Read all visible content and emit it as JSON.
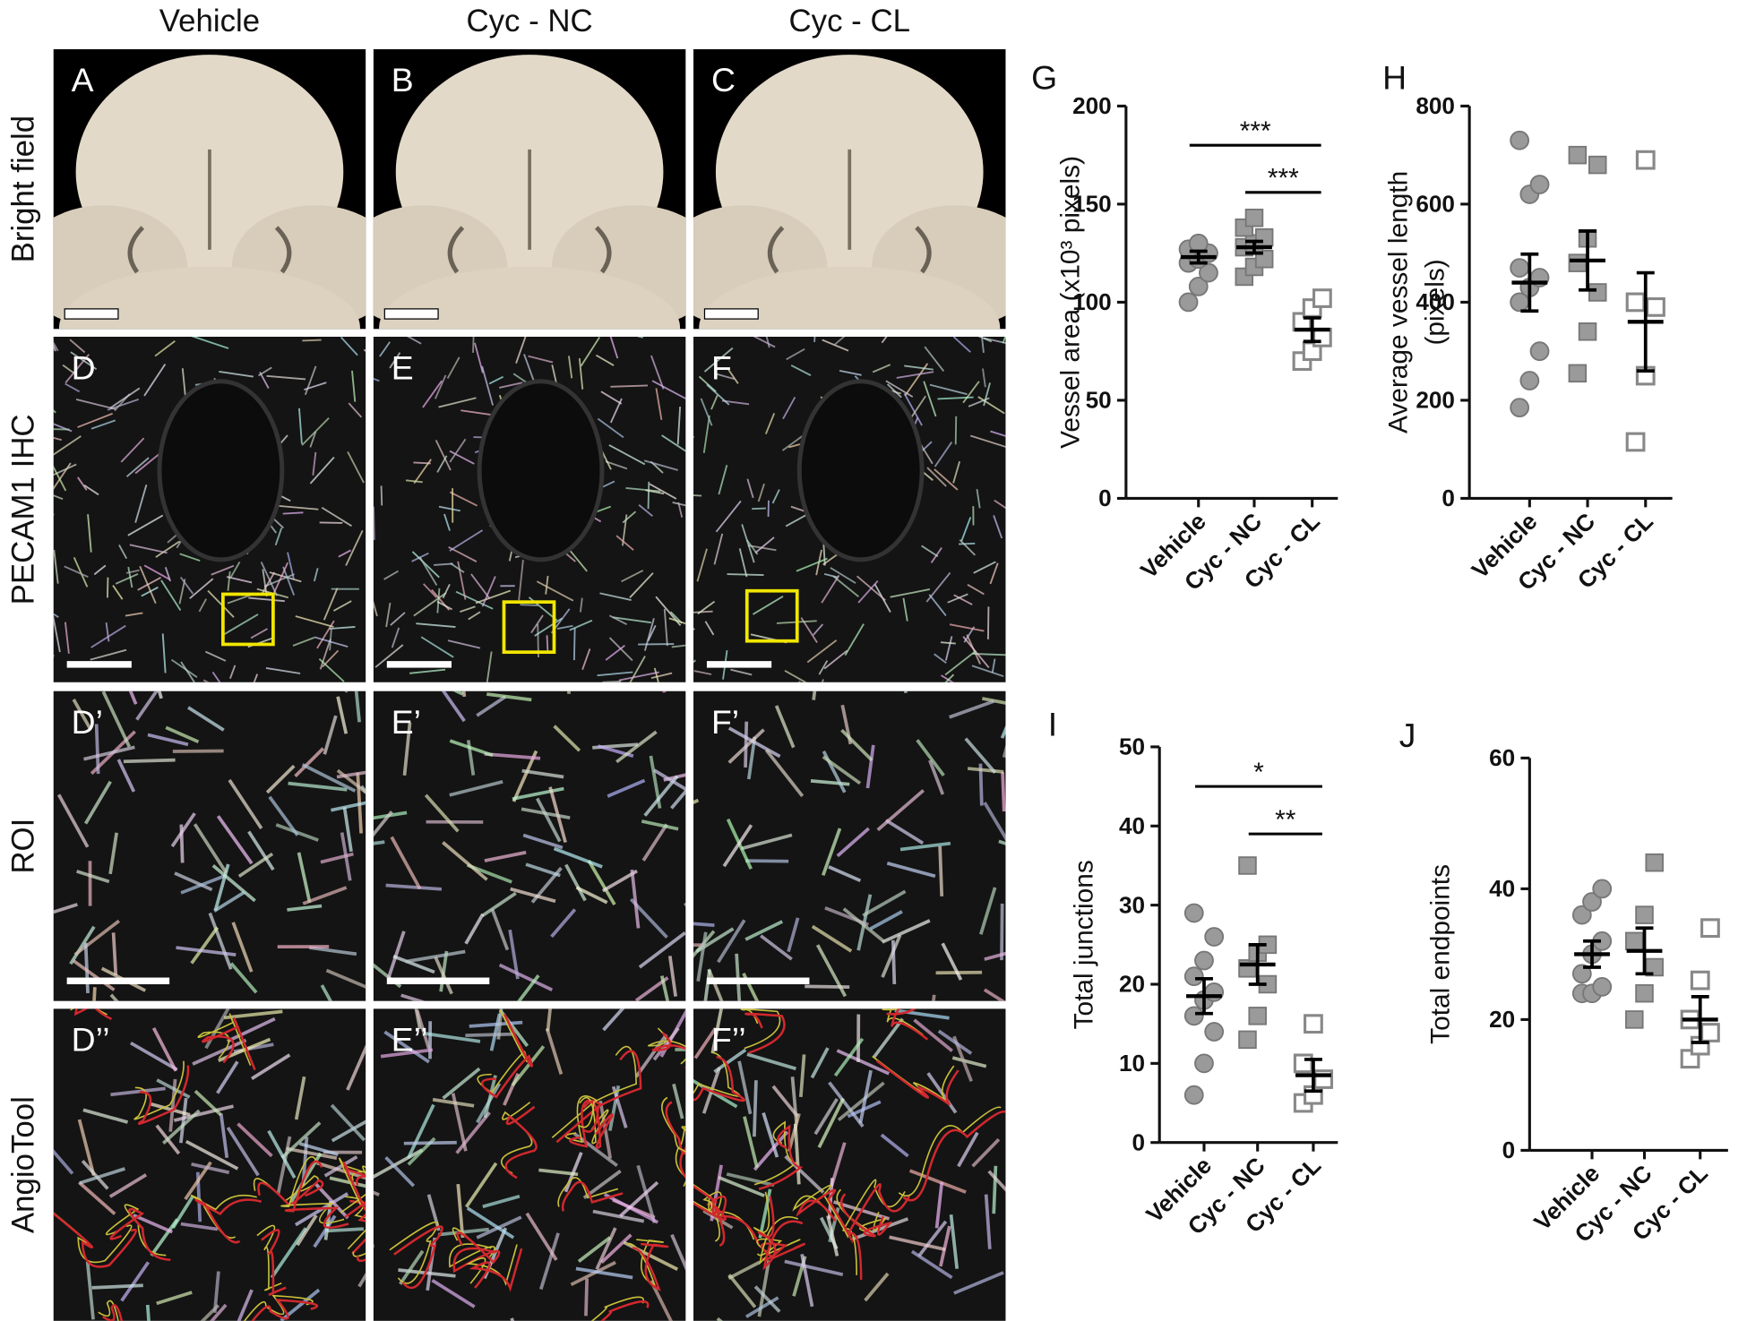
{
  "column_headers": [
    "Vehicle",
    "Cyc - NC",
    "Cyc - CL"
  ],
  "row_labels": [
    "Bright field",
    "PECAM1 IHC",
    "ROI",
    "AngioTool"
  ],
  "panel_labels": [
    [
      "A",
      "B",
      "C"
    ],
    [
      "D",
      "E",
      "F"
    ],
    [
      "D’",
      "E’",
      "F’"
    ],
    [
      "D’’",
      "E’’",
      "F’’"
    ]
  ],
  "chart_data": [
    {
      "type": "dot",
      "panel_label": "G",
      "ylabel": [
        "Vessel area (x10³ pixels)"
      ],
      "categories": [
        "Vehicle",
        "Cyc - NC",
        "Cyc - CL"
      ],
      "ylim": [
        0,
        200
      ],
      "yticks": [
        0,
        50,
        100,
        150,
        200
      ],
      "markers": [
        "circle",
        "square",
        "open-square"
      ],
      "colors": [
        "#9a9a9a",
        "#9a9a9a",
        "#ffffff"
      ],
      "points": [
        [
          100,
          108,
          115,
          120,
          122,
          125,
          127,
          130
        ],
        [
          113,
          118,
          122,
          128,
          130,
          133,
          138,
          143
        ],
        [
          70,
          75,
          82,
          90,
          97,
          102
        ]
      ],
      "means": [
        123,
        128,
        86
      ],
      "sems": [
        3,
        3,
        6
      ],
      "brackets": [
        {
          "label": "***",
          "span": [
            0,
            2
          ]
        },
        {
          "label": "***",
          "span": [
            1,
            2
          ]
        }
      ]
    },
    {
      "type": "dot",
      "panel_label": "H",
      "ylabel": [
        "Average vessel length",
        "(pixels)"
      ],
      "categories": [
        "Vehicle",
        "Cyc - NC",
        "Cyc - CL"
      ],
      "ylim": [
        0,
        800
      ],
      "yticks": [
        0,
        200,
        400,
        600,
        800
      ],
      "markers": [
        "circle",
        "square",
        "open-square"
      ],
      "colors": [
        "#9a9a9a",
        "#9a9a9a",
        "#ffffff"
      ],
      "points": [
        [
          185,
          240,
          300,
          400,
          430,
          450,
          470,
          620,
          640,
          730
        ],
        [
          255,
          340,
          420,
          480,
          530,
          680,
          700
        ],
        [
          115,
          250,
          390,
          400,
          690
        ]
      ],
      "means": [
        440,
        485,
        360
      ],
      "sems": [
        58,
        60,
        100
      ],
      "brackets": []
    },
    {
      "type": "dot",
      "panel_label": "I",
      "ylabel": [
        "Total junctions"
      ],
      "categories": [
        "Vehicle",
        "Cyc - NC",
        "Cyc - CL"
      ],
      "ylim": [
        0,
        50
      ],
      "yticks": [
        0,
        10,
        20,
        30,
        40,
        50
      ],
      "markers": [
        "circle",
        "square",
        "open-square"
      ],
      "colors": [
        "#9a9a9a",
        "#9a9a9a",
        "#ffffff"
      ],
      "points": [
        [
          6,
          10,
          14,
          16,
          18,
          19,
          21,
          23,
          26,
          29
        ],
        [
          13,
          16,
          20,
          22,
          24,
          25,
          35
        ],
        [
          5,
          6,
          8,
          10,
          15
        ]
      ],
      "means": [
        18.5,
        22.5,
        8.5
      ],
      "sems": [
        2.2,
        2.5,
        2
      ],
      "brackets": [
        {
          "label": "*",
          "span": [
            0,
            2
          ]
        },
        {
          "label": "**",
          "span": [
            1,
            2
          ]
        }
      ]
    },
    {
      "type": "dot",
      "panel_label": "J",
      "ylabel": [
        "Total endpoints"
      ],
      "categories": [
        "Vehicle",
        "Cyc - NC",
        "Cyc - CL"
      ],
      "ylim": [
        0,
        60
      ],
      "yticks": [
        0,
        20,
        40,
        60
      ],
      "markers": [
        "circle",
        "square",
        "open-square"
      ],
      "colors": [
        "#9a9a9a",
        "#9a9a9a",
        "#ffffff"
      ],
      "points": [
        [
          24,
          24,
          25,
          27,
          30,
          32,
          36,
          38,
          40
        ],
        [
          20,
          24,
          28,
          32,
          36,
          44
        ],
        [
          14,
          16,
          18,
          20,
          26,
          34
        ]
      ],
      "means": [
        30,
        30.5,
        20
      ],
      "sems": [
        2,
        3.5,
        3.5
      ],
      "brackets": []
    }
  ]
}
